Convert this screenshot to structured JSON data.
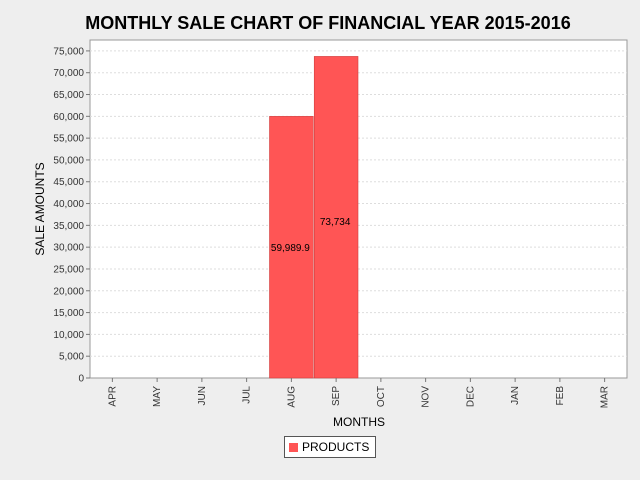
{
  "chart_data": {
    "type": "bar",
    "title": "MONTHLY SALE CHART OF FINANCIAL YEAR 2015-2016",
    "xlabel": "MONTHS",
    "ylabel": "SALE AMOUNTS",
    "categories": [
      "APR",
      "MAY",
      "JUN",
      "JUL",
      "AUG",
      "SEP",
      "OCT",
      "NOV",
      "DEC",
      "JAN",
      "FEB",
      "MAR"
    ],
    "series": [
      {
        "name": "PRODUCTS",
        "values": [
          0,
          0,
          0,
          0,
          59989.9,
          73734,
          0,
          0,
          0,
          0,
          0,
          0
        ],
        "labels": [
          "",
          "",
          "",
          "",
          "59,989.9",
          "73,734",
          "",
          "",
          "",
          "",
          "",
          ""
        ],
        "color": "#ff5555"
      }
    ],
    "ylim": [
      0,
      77500
    ],
    "yticks": [
      0,
      5000,
      10000,
      15000,
      20000,
      25000,
      30000,
      35000,
      40000,
      45000,
      50000,
      55000,
      60000,
      65000,
      70000,
      75000
    ],
    "ytick_labels": [
      "0",
      "5,000",
      "10,000",
      "15,000",
      "20,000",
      "25,000",
      "30,000",
      "35,000",
      "40,000",
      "45,000",
      "50,000",
      "55,000",
      "60,000",
      "65,000",
      "70,000",
      "75,000"
    ],
    "grid": true,
    "legend_position": "bottom-center",
    "colors": {
      "background": "#eeeeee",
      "plot_background": "#ffffff",
      "gridline": "#dddddd",
      "bar_border": "#d04040"
    }
  }
}
